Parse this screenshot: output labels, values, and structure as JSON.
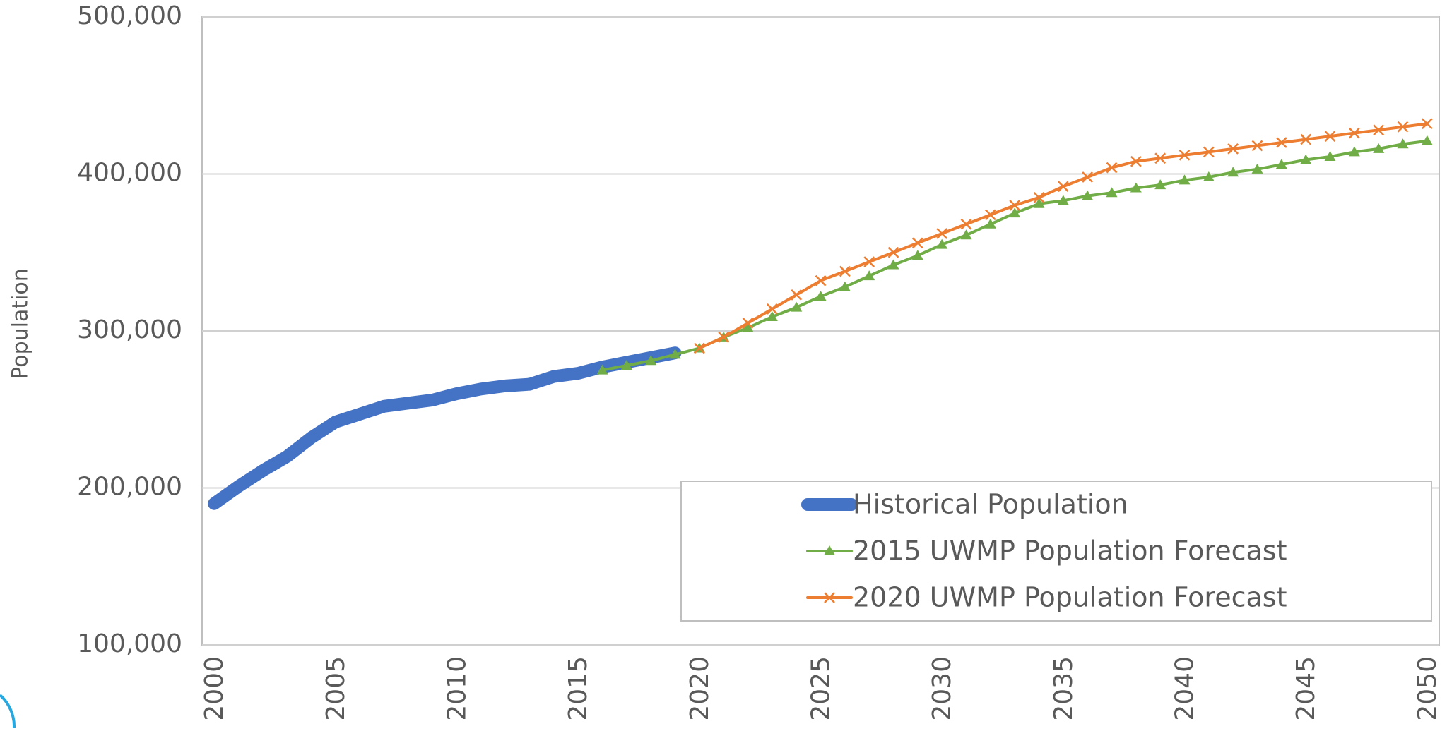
{
  "chart_data": {
    "type": "line",
    "y_label": "Population",
    "x": [
      2000,
      2001,
      2002,
      2003,
      2004,
      2005,
      2006,
      2007,
      2008,
      2009,
      2010,
      2011,
      2012,
      2013,
      2014,
      2015,
      2016,
      2017,
      2018,
      2019,
      2020,
      2021,
      2022,
      2023,
      2024,
      2025,
      2026,
      2027,
      2028,
      2029,
      2030,
      2031,
      2032,
      2033,
      2034,
      2035,
      2036,
      2037,
      2038,
      2039,
      2040,
      2041,
      2042,
      2043,
      2044,
      2045,
      2046,
      2047,
      2048,
      2049,
      2050
    ],
    "xlim": [
      1999.5,
      2050.5
    ],
    "xticks": [
      2000,
      2005,
      2010,
      2015,
      2020,
      2025,
      2030,
      2035,
      2040,
      2045,
      2050
    ],
    "ylim": [
      100000,
      500000
    ],
    "yticks": [
      {
        "value": 100000,
        "label": "100,000"
      },
      {
        "value": 200000,
        "label": "200,000"
      },
      {
        "value": 300000,
        "label": "300,000"
      },
      {
        "value": 400000,
        "label": "400,000"
      },
      {
        "value": 500000,
        "label": "500,000"
      }
    ],
    "grid": true,
    "legend": "lower right",
    "series": [
      {
        "name": "Historical Population",
        "color": "#4472c4",
        "marker": "none",
        "values": [
          190000,
          201000,
          211000,
          220000,
          232000,
          242000,
          247000,
          252000,
          254000,
          256000,
          260000,
          263000,
          265000,
          266000,
          271000,
          273000,
          277000,
          280000,
          283000,
          286000,
          null,
          null,
          null,
          null,
          null,
          null,
          null,
          null,
          null,
          null,
          null,
          null,
          null,
          null,
          null,
          null,
          null,
          null,
          null,
          null,
          null,
          null,
          null,
          null,
          null,
          null,
          null,
          null,
          null,
          null,
          null
        ]
      },
      {
        "name": "2015 UWMP Population Forecast",
        "color": "#70ad47",
        "marker": "triangle",
        "values": [
          null,
          null,
          null,
          null,
          null,
          null,
          null,
          null,
          null,
          null,
          null,
          null,
          null,
          null,
          null,
          null,
          275000,
          278000,
          281000,
          285000,
          289000,
          296000,
          302000,
          309000,
          315000,
          322000,
          328000,
          335000,
          342000,
          348000,
          355000,
          361000,
          368000,
          375000,
          381000,
          383000,
          386000,
          388000,
          391000,
          393000,
          396000,
          398000,
          401000,
          403000,
          406000,
          409000,
          411000,
          414000,
          416000,
          419000,
          421000
        ]
      },
      {
        "name": "2020 UWMP Population Forecast",
        "color": "#ed7d31",
        "marker": "x",
        "values": [
          null,
          null,
          null,
          null,
          null,
          null,
          null,
          null,
          null,
          null,
          null,
          null,
          null,
          null,
          null,
          null,
          null,
          null,
          null,
          null,
          289000,
          296000,
          305000,
          314000,
          323000,
          332000,
          338000,
          344000,
          350000,
          356000,
          362000,
          368000,
          374000,
          380000,
          385000,
          392000,
          398000,
          404000,
          408000,
          410000,
          412000,
          414000,
          416000,
          418000,
          420000,
          422000,
          424000,
          426000,
          428000,
          430000,
          432000
        ]
      }
    ]
  }
}
